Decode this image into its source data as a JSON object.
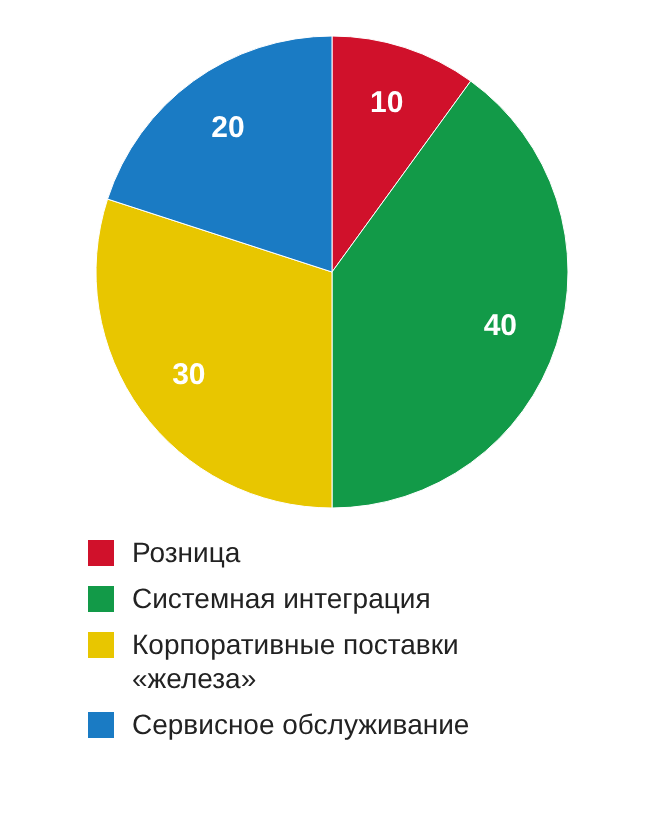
{
  "chart_data": {
    "type": "pie",
    "categories": [
      "Розница",
      "Системная интеграция",
      "Корпоративные поставки «железа»",
      "Сервисное обслуживание"
    ],
    "values": [
      10,
      40,
      30,
      20
    ],
    "colors": [
      "#d0112b",
      "#129a48",
      "#e8c600",
      "#1a7bc4"
    ],
    "data_labels": true,
    "legend": "bottom"
  }
}
